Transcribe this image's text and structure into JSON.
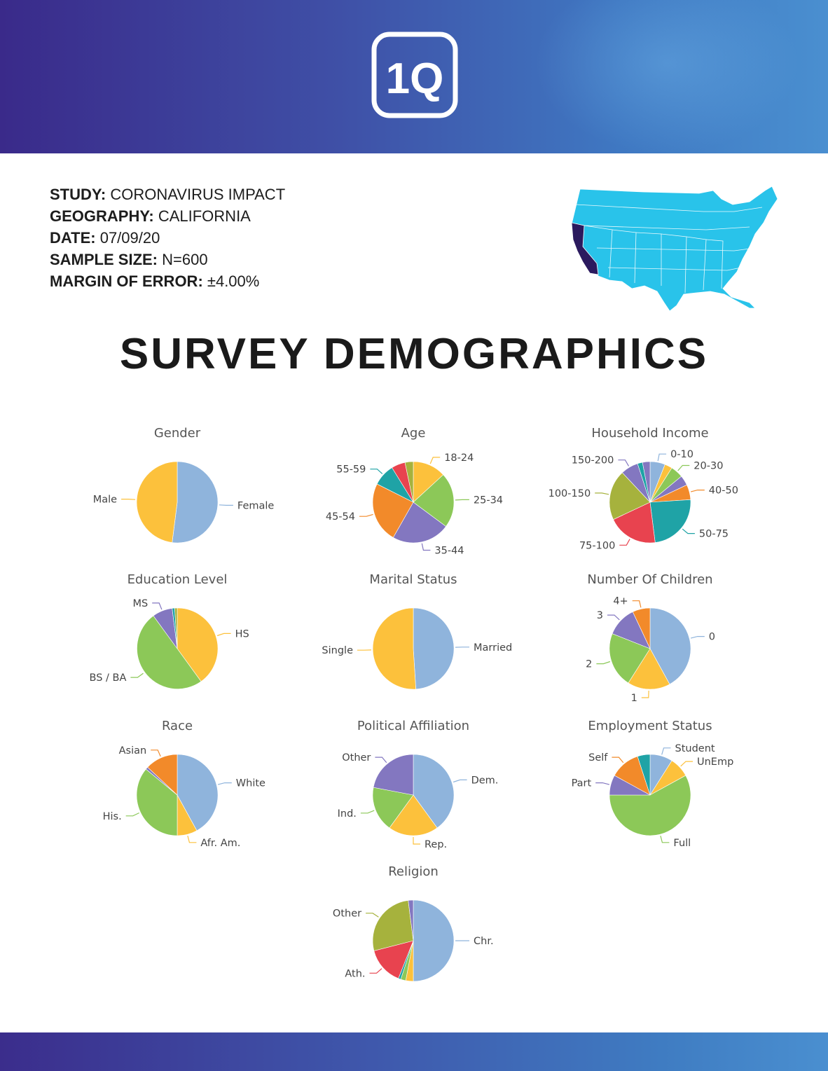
{
  "brand": {
    "logo_text": "1Q"
  },
  "study_info": {
    "study_key": "STUDY:",
    "study_val": " CORONAVIRUS IMPACT",
    "geo_key": "GEOGRAPHY:",
    "geo_val": " CALIFORNIA",
    "date_key": "DATE:",
    "date_val": " 07/09/20",
    "sample_key": "SAMPLE SIZE:",
    "sample_val": " N=600",
    "moe_key": "MARGIN OF ERROR:",
    "moe_val": " ±4.00%"
  },
  "map": {
    "highlighted_state": "California",
    "base_color": "#29c3ea",
    "highlight_color": "#2b1a5e"
  },
  "headline": "SURVEY DEMOGRAPHICS",
  "colors": {
    "blue": "#8fb4dc",
    "yellow": "#fcc13c",
    "green": "#8cc858",
    "purple": "#8377c0",
    "orange": "#f28a2a",
    "teal": "#1fa3a6",
    "red": "#e8434f",
    "olive": "#a6b23d"
  },
  "chart_data": [
    {
      "type": "pie",
      "title": "Gender",
      "slices": [
        {
          "label": "Female",
          "value": 52,
          "color": "blue"
        },
        {
          "label": "Male",
          "value": 48,
          "color": "yellow"
        }
      ]
    },
    {
      "type": "pie",
      "title": "Age",
      "slices": [
        {
          "label": "18-24",
          "value": 12,
          "color": "yellow"
        },
        {
          "label": "25-34",
          "value": 20,
          "color": "green"
        },
        {
          "label": "35-44",
          "value": 21,
          "color": "purple"
        },
        {
          "label": "45-54",
          "value": 22,
          "color": "orange"
        },
        {
          "label": "55-59",
          "value": 8,
          "color": "teal"
        },
        {
          "label": "",
          "value": 5,
          "color": "red"
        },
        {
          "label": "",
          "value": 3,
          "color": "olive"
        }
      ]
    },
    {
      "type": "pie",
      "title": "Household Income",
      "slices": [
        {
          "label": "0-10",
          "value": 6,
          "color": "blue"
        },
        {
          "label": "",
          "value": 3,
          "color": "yellow"
        },
        {
          "label": "20-30",
          "value": 5,
          "color": "green"
        },
        {
          "label": "",
          "value": 4,
          "color": "purple"
        },
        {
          "label": "40-50",
          "value": 6,
          "color": "orange"
        },
        {
          "label": "50-75",
          "value": 24,
          "color": "teal"
        },
        {
          "label": "75-100",
          "value": 20,
          "color": "red"
        },
        {
          "label": "100-150",
          "value": 20,
          "color": "olive"
        },
        {
          "label": "150-200",
          "value": 7,
          "color": "purple"
        },
        {
          "label": "",
          "value": 2,
          "color": "teal"
        },
        {
          "label": "",
          "value": 3,
          "color": "purple"
        }
      ]
    },
    {
      "type": "pie",
      "title": "Education Level",
      "slices": [
        {
          "label": "HS",
          "value": 40,
          "color": "yellow"
        },
        {
          "label": "BS / BA",
          "value": 50,
          "color": "green"
        },
        {
          "label": "MS",
          "value": 8,
          "color": "purple"
        },
        {
          "label": "",
          "value": 1,
          "color": "teal"
        },
        {
          "label": "",
          "value": 1,
          "color": "olive"
        }
      ]
    },
    {
      "type": "pie",
      "title": "Marital Status",
      "slices": [
        {
          "label": "Married",
          "value": 49,
          "color": "blue"
        },
        {
          "label": "Single",
          "value": 51,
          "color": "yellow"
        }
      ]
    },
    {
      "type": "pie",
      "title": "Number Of Children",
      "slices": [
        {
          "label": "0",
          "value": 42,
          "color": "blue"
        },
        {
          "label": "1",
          "value": 17,
          "color": "yellow"
        },
        {
          "label": "2",
          "value": 22,
          "color": "green"
        },
        {
          "label": "3",
          "value": 12,
          "color": "purple"
        },
        {
          "label": "4+",
          "value": 7,
          "color": "orange"
        }
      ]
    },
    {
      "type": "pie",
      "title": "Race",
      "slices": [
        {
          "label": "White",
          "value": 42,
          "color": "blue"
        },
        {
          "label": "Afr. Am.",
          "value": 8,
          "color": "yellow"
        },
        {
          "label": "His.",
          "value": 36,
          "color": "green"
        },
        {
          "label": "",
          "value": 1,
          "color": "purple"
        },
        {
          "label": "Asian",
          "value": 13,
          "color": "orange"
        }
      ]
    },
    {
      "type": "pie",
      "title": "Political Affiliation",
      "slices": [
        {
          "label": "Dem.",
          "value": 40,
          "color": "blue"
        },
        {
          "label": "Rep.",
          "value": 20,
          "color": "yellow"
        },
        {
          "label": "Ind.",
          "value": 18,
          "color": "green"
        },
        {
          "label": "Other",
          "value": 22,
          "color": "purple"
        }
      ]
    },
    {
      "type": "pie",
      "title": "Employment Status",
      "slices": [
        {
          "label": "Student",
          "value": 9,
          "color": "blue"
        },
        {
          "label": "UnEmp",
          "value": 8,
          "color": "yellow"
        },
        {
          "label": "Full",
          "value": 58,
          "color": "green"
        },
        {
          "label": "Part",
          "value": 8,
          "color": "purple"
        },
        {
          "label": "Self",
          "value": 12,
          "color": "orange"
        },
        {
          "label": "",
          "value": 5,
          "color": "teal"
        }
      ]
    },
    {
      "type": "pie",
      "title": "Religion",
      "slices": [
        {
          "label": "Chr.",
          "value": 50,
          "color": "blue"
        },
        {
          "label": "",
          "value": 3,
          "color": "yellow"
        },
        {
          "label": "",
          "value": 2,
          "color": "green"
        },
        {
          "label": "",
          "value": 1,
          "color": "teal"
        },
        {
          "label": "Ath.",
          "value": 15,
          "color": "red"
        },
        {
          "label": "Other",
          "value": 27,
          "color": "olive"
        },
        {
          "label": "",
          "value": 2,
          "color": "purple"
        }
      ]
    }
  ]
}
